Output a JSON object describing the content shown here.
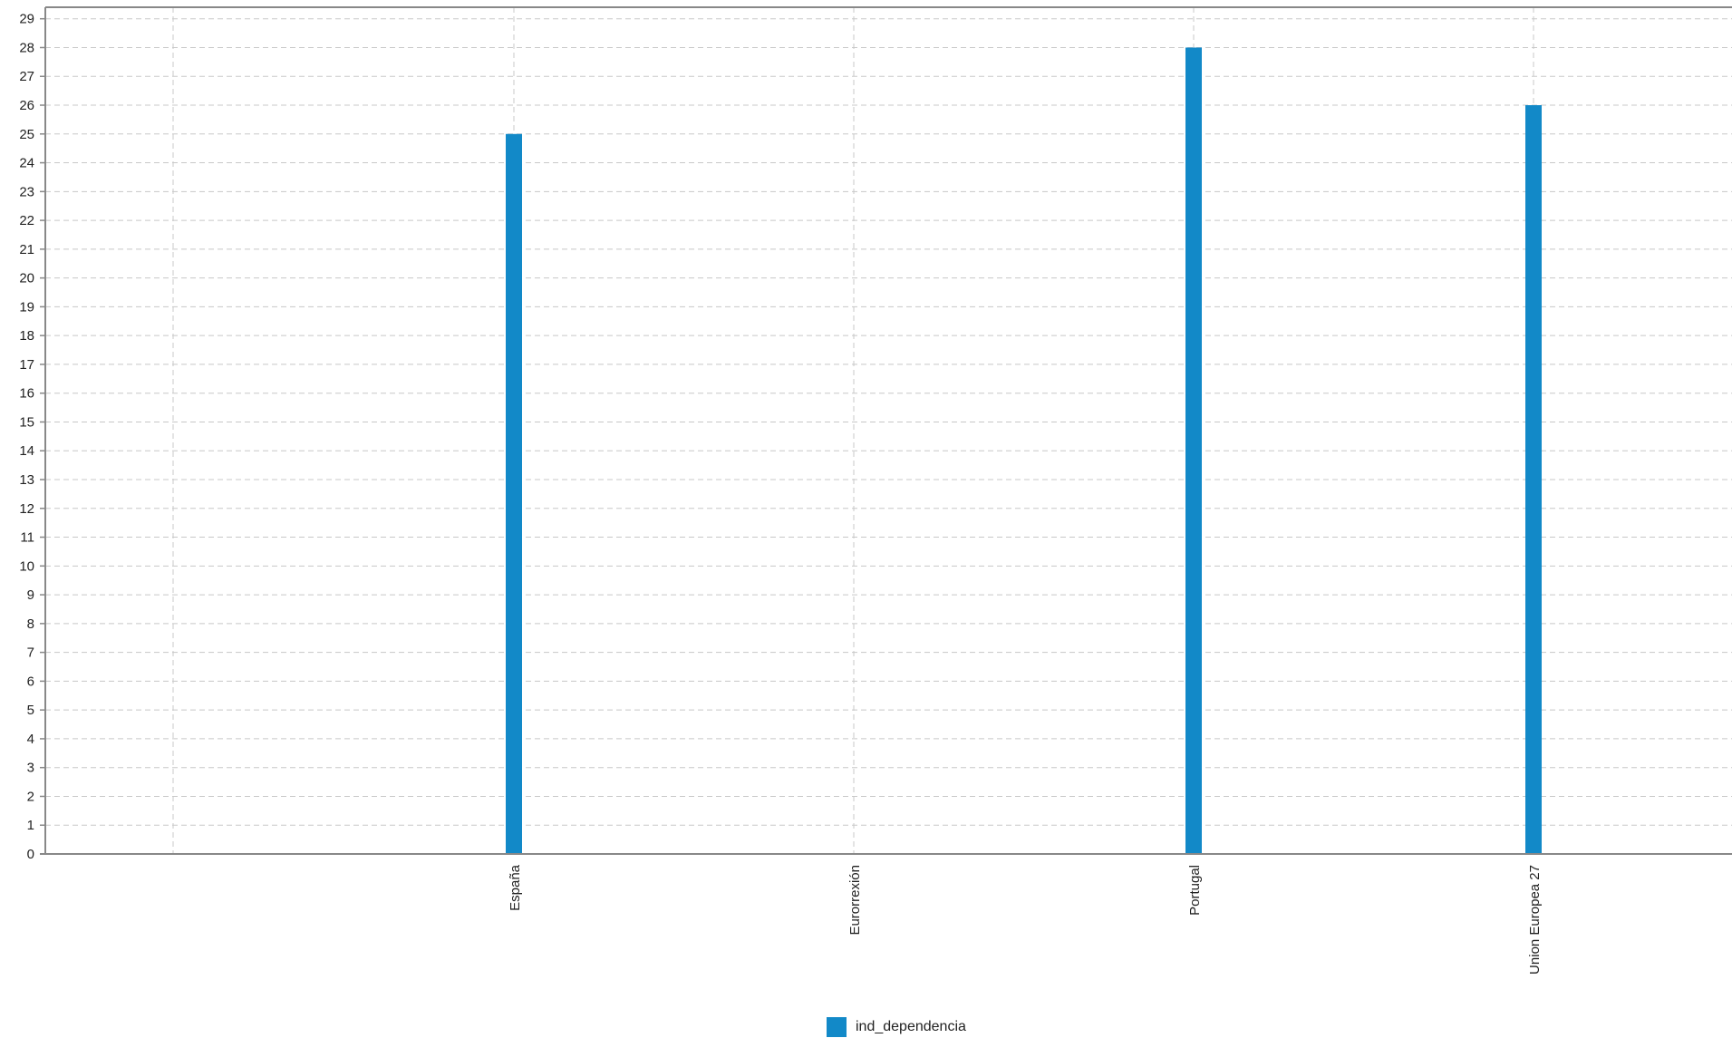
{
  "chart_data": {
    "type": "bar",
    "categories": [
      "",
      "España",
      "Eurorrexión",
      "Portugal",
      "Union Europea 27"
    ],
    "series": [
      {
        "name": "ind_dependencia",
        "values": [
          null,
          25,
          null,
          28,
          26
        ]
      }
    ],
    "ylim": [
      0,
      29
    ],
    "yticks": [
      0,
      1,
      2,
      3,
      4,
      5,
      6,
      7,
      8,
      9,
      10,
      11,
      12,
      13,
      14,
      15,
      16,
      17,
      18,
      19,
      20,
      21,
      22,
      23,
      24,
      25,
      26,
      27,
      28,
      29
    ],
    "title": "",
    "xlabel": "",
    "ylabel": "",
    "grid": true,
    "legend_position": "bottom-center",
    "colors": {
      "bar": "#1289c8",
      "grid": "#c8c8c8",
      "axis": "#888888"
    }
  },
  "legend": {
    "label": "ind_dependencia"
  }
}
